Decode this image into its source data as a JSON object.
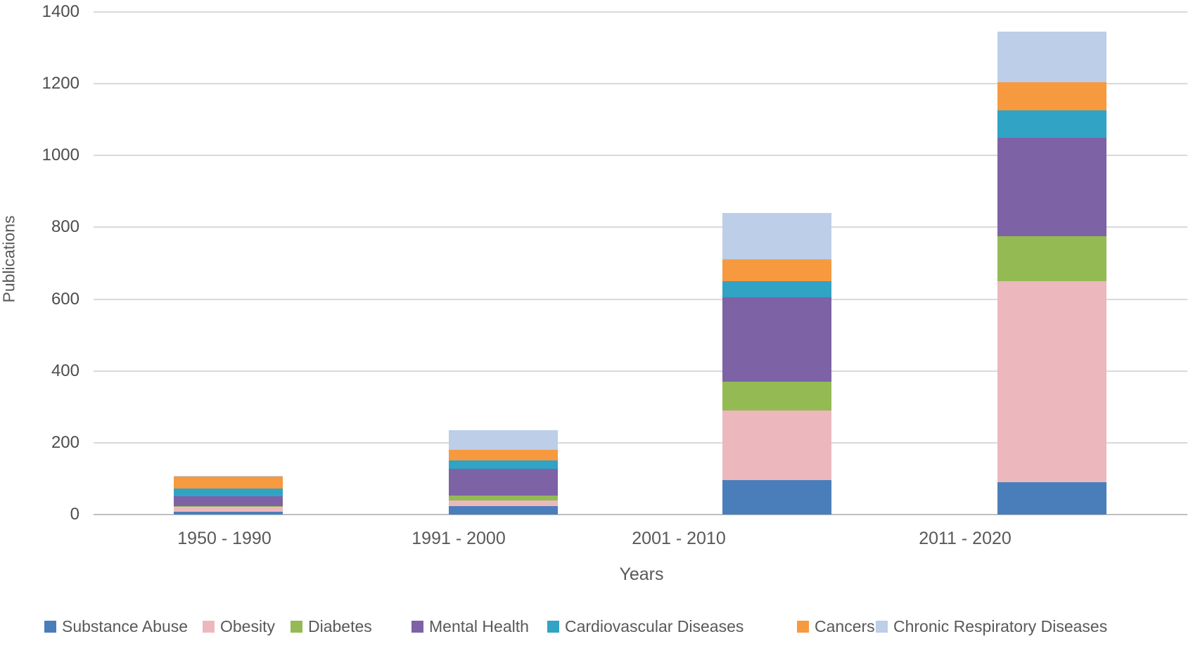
{
  "chart_data": {
    "type": "bar",
    "subtype": "stacked-vertical",
    "title": "",
    "xlabel": "Years",
    "ylabel": "Publications",
    "categories": [
      "1950 - 1990",
      "1991 - 2000",
      "2001 - 2010",
      "2011 - 2020"
    ],
    "yticks": [
      0,
      200,
      400,
      600,
      800,
      1000,
      1200,
      1400
    ],
    "ylim": [
      0,
      1400
    ],
    "grid": "horizontal",
    "legend_position": "bottom",
    "series": [
      {
        "name": "Substance Abuse",
        "color": "#4A7EBB",
        "values": [
          8,
          23,
          95,
          90
        ]
      },
      {
        "name": "Obesity",
        "color": "#ECB8BE",
        "values": [
          13,
          16,
          195,
          560
        ]
      },
      {
        "name": "Diabetes",
        "color": "#94BA54",
        "values": [
          2,
          13,
          80,
          125
        ]
      },
      {
        "name": "Mental Health",
        "color": "#7D62A6",
        "values": [
          28,
          75,
          235,
          275
        ]
      },
      {
        "name": "Cardiovascular Diseases",
        "color": "#31A3C4",
        "values": [
          22,
          23,
          45,
          75
        ]
      },
      {
        "name": "Cancers",
        "color": "#F7993F",
        "values": [
          32,
          31,
          60,
          80
        ]
      },
      {
        "name": "Chronic Respiratory Diseases",
        "color": "#BCCEE8",
        "values": [
          2,
          54,
          130,
          140
        ]
      }
    ],
    "totals": [
      107,
      235,
      840,
      1345
    ]
  }
}
